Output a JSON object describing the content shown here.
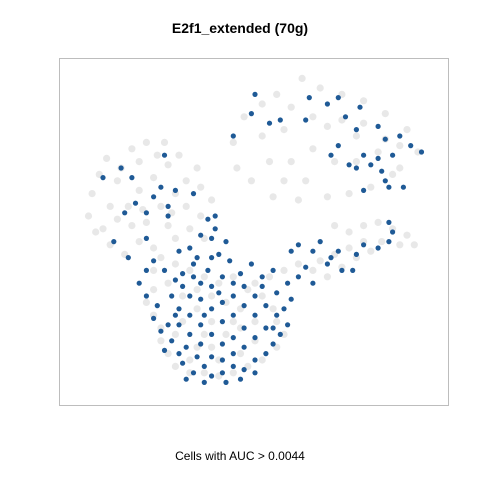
{
  "chart_data": {
    "type": "scatter",
    "title": "E2f1_extended (70g)",
    "subtitle": "Cells with AUC > 0.0044",
    "xlabel": "",
    "ylabel": "",
    "xlim": [
      0,
      1
    ],
    "ylim": [
      0,
      1
    ],
    "grid": false,
    "legend": "none",
    "colors": {
      "background_cells": "#d9d9d9",
      "highlighted_cells": "#1f5a96",
      "frame": "#bdbdbd"
    },
    "series": [
      {
        "values": [
          [
            0.56,
            0.93
          ],
          [
            0.63,
            0.98
          ],
          [
            0.68,
            0.95
          ],
          [
            0.74,
            0.93
          ],
          [
            0.8,
            0.91
          ],
          [
            0.86,
            0.87
          ],
          [
            0.92,
            0.82
          ],
          [
            0.95,
            0.75
          ],
          [
            0.88,
            0.68
          ],
          [
            0.82,
            0.64
          ],
          [
            0.76,
            0.62
          ],
          [
            0.7,
            0.61
          ],
          [
            0.62,
            0.6
          ],
          [
            0.55,
            0.61
          ],
          [
            0.49,
            0.66
          ],
          [
            0.45,
            0.7
          ],
          [
            0.44,
            0.78
          ],
          [
            0.47,
            0.86
          ],
          [
            0.52,
            0.9
          ],
          [
            0.6,
            0.89
          ],
          [
            0.66,
            0.86
          ],
          [
            0.7,
            0.83
          ],
          [
            0.66,
            0.76
          ],
          [
            0.6,
            0.72
          ],
          [
            0.54,
            0.72
          ],
          [
            0.52,
            0.8
          ],
          [
            0.58,
            0.82
          ],
          [
            0.72,
            0.72
          ],
          [
            0.78,
            0.72
          ],
          [
            0.84,
            0.75
          ],
          [
            0.9,
            0.77
          ],
          [
            0.86,
            0.79
          ],
          [
            0.78,
            0.8
          ],
          [
            0.74,
            0.85
          ],
          [
            0.8,
            0.84
          ],
          [
            0.9,
            0.7
          ],
          [
            0.64,
            0.66
          ],
          [
            0.58,
            0.66
          ],
          [
            0.04,
            0.55
          ],
          [
            0.05,
            0.62
          ],
          [
            0.07,
            0.68
          ],
          [
            0.09,
            0.73
          ],
          [
            0.12,
            0.66
          ],
          [
            0.1,
            0.58
          ],
          [
            0.08,
            0.51
          ],
          [
            0.1,
            0.46
          ],
          [
            0.14,
            0.43
          ],
          [
            0.18,
            0.47
          ],
          [
            0.2,
            0.53
          ],
          [
            0.24,
            0.58
          ],
          [
            0.28,
            0.62
          ],
          [
            0.31,
            0.66
          ],
          [
            0.35,
            0.64
          ],
          [
            0.38,
            0.6
          ],
          [
            0.35,
            0.55
          ],
          [
            0.32,
            0.51
          ],
          [
            0.28,
            0.48
          ],
          [
            0.22,
            0.45
          ],
          [
            0.16,
            0.52
          ],
          [
            0.15,
            0.58
          ],
          [
            0.18,
            0.63
          ],
          [
            0.22,
            0.67
          ],
          [
            0.26,
            0.71
          ],
          [
            0.23,
            0.74
          ],
          [
            0.18,
            0.72
          ],
          [
            0.13,
            0.7
          ],
          [
            0.16,
            0.76
          ],
          [
            0.2,
            0.78
          ],
          [
            0.25,
            0.78
          ],
          [
            0.29,
            0.74
          ],
          [
            0.34,
            0.7
          ],
          [
            0.06,
            0.5
          ],
          [
            0.12,
            0.54
          ],
          [
            0.27,
            0.56
          ],
          [
            0.31,
            0.58
          ],
          [
            0.36,
            0.48
          ],
          [
            0.26,
            0.52
          ],
          [
            0.19,
            0.57
          ],
          [
            0.72,
            0.52
          ],
          [
            0.76,
            0.5
          ],
          [
            0.8,
            0.52
          ],
          [
            0.84,
            0.53
          ],
          [
            0.88,
            0.51
          ],
          [
            0.92,
            0.49
          ],
          [
            0.94,
            0.46
          ],
          [
            0.9,
            0.46
          ],
          [
            0.85,
            0.47
          ],
          [
            0.8,
            0.47
          ],
          [
            0.76,
            0.45
          ],
          [
            0.72,
            0.43
          ],
          [
            0.68,
            0.41
          ],
          [
            0.66,
            0.38
          ],
          [
            0.7,
            0.36
          ],
          [
            0.74,
            0.39
          ],
          [
            0.78,
            0.42
          ],
          [
            0.82,
            0.44
          ],
          [
            0.62,
            0.4
          ],
          [
            0.58,
            0.38
          ],
          [
            0.54,
            0.36
          ],
          [
            0.5,
            0.34
          ],
          [
            0.22,
            0.38
          ],
          [
            0.24,
            0.42
          ],
          [
            0.28,
            0.4
          ],
          [
            0.32,
            0.38
          ],
          [
            0.36,
            0.36
          ],
          [
            0.4,
            0.34
          ],
          [
            0.44,
            0.36
          ],
          [
            0.48,
            0.32
          ],
          [
            0.52,
            0.3
          ],
          [
            0.55,
            0.26
          ],
          [
            0.56,
            0.22
          ],
          [
            0.58,
            0.18
          ],
          [
            0.56,
            0.14
          ],
          [
            0.52,
            0.1
          ],
          [
            0.48,
            0.08
          ],
          [
            0.44,
            0.06
          ],
          [
            0.4,
            0.05
          ],
          [
            0.36,
            0.06
          ],
          [
            0.32,
            0.06
          ],
          [
            0.28,
            0.08
          ],
          [
            0.26,
            0.12
          ],
          [
            0.24,
            0.16
          ],
          [
            0.24,
            0.2
          ],
          [
            0.22,
            0.24
          ],
          [
            0.2,
            0.28
          ],
          [
            0.22,
            0.32
          ],
          [
            0.26,
            0.34
          ],
          [
            0.3,
            0.3
          ],
          [
            0.34,
            0.26
          ],
          [
            0.38,
            0.22
          ],
          [
            0.42,
            0.18
          ],
          [
            0.46,
            0.2
          ],
          [
            0.5,
            0.22
          ],
          [
            0.46,
            0.26
          ],
          [
            0.42,
            0.28
          ],
          [
            0.38,
            0.3
          ],
          [
            0.34,
            0.32
          ],
          [
            0.3,
            0.22
          ],
          [
            0.34,
            0.14
          ],
          [
            0.4,
            0.1
          ],
          [
            0.46,
            0.12
          ],
          [
            0.5,
            0.16
          ],
          [
            0.28,
            0.18
          ],
          [
            0.32,
            0.1
          ],
          [
            0.38,
            0.14
          ],
          [
            0.44,
            0.22
          ],
          [
            0.36,
            0.18
          ]
        ]
      },
      {
        "values": [
          [
            0.44,
            0.8
          ],
          [
            0.49,
            0.87
          ],
          [
            0.54,
            0.84
          ],
          [
            0.5,
            0.93
          ],
          [
            0.57,
            0.85
          ],
          [
            0.65,
            0.92
          ],
          [
            0.7,
            0.9
          ],
          [
            0.75,
            0.86
          ],
          [
            0.79,
            0.89
          ],
          [
            0.84,
            0.83
          ],
          [
            0.86,
            0.79
          ],
          [
            0.9,
            0.8
          ],
          [
            0.93,
            0.77
          ],
          [
            0.96,
            0.75
          ],
          [
            0.88,
            0.74
          ],
          [
            0.84,
            0.73
          ],
          [
            0.78,
            0.7
          ],
          [
            0.76,
            0.71
          ],
          [
            0.73,
            0.77
          ],
          [
            0.78,
            0.82
          ],
          [
            0.64,
            0.85
          ],
          [
            0.73,
            0.92
          ],
          [
            0.8,
            0.74
          ],
          [
            0.82,
            0.71
          ],
          [
            0.85,
            0.69
          ],
          [
            0.87,
            0.64
          ],
          [
            0.8,
            0.63
          ],
          [
            0.91,
            0.64
          ],
          [
            0.86,
            0.66
          ],
          [
            0.71,
            0.74
          ],
          [
            0.08,
            0.67
          ],
          [
            0.13,
            0.7
          ],
          [
            0.16,
            0.67
          ],
          [
            0.25,
            0.74
          ],
          [
            0.24,
            0.64
          ],
          [
            0.22,
            0.61
          ],
          [
            0.2,
            0.56
          ],
          [
            0.14,
            0.56
          ],
          [
            0.11,
            0.47
          ],
          [
            0.15,
            0.42
          ],
          [
            0.2,
            0.38
          ],
          [
            0.25,
            0.38
          ],
          [
            0.3,
            0.37
          ],
          [
            0.38,
            0.48
          ],
          [
            0.39,
            0.51
          ],
          [
            0.35,
            0.49
          ],
          [
            0.37,
            0.54
          ],
          [
            0.33,
            0.62
          ],
          [
            0.28,
            0.63
          ],
          [
            0.26,
            0.55
          ],
          [
            0.32,
            0.45
          ],
          [
            0.39,
            0.55
          ],
          [
            0.42,
            0.47
          ],
          [
            0.4,
            0.43
          ],
          [
            0.34,
            0.42
          ],
          [
            0.29,
            0.44
          ],
          [
            0.22,
            0.41
          ],
          [
            0.2,
            0.48
          ],
          [
            0.17,
            0.59
          ],
          [
            0.26,
            0.58
          ],
          [
            0.6,
            0.44
          ],
          [
            0.62,
            0.46
          ],
          [
            0.66,
            0.44
          ],
          [
            0.68,
            0.47
          ],
          [
            0.71,
            0.42
          ],
          [
            0.74,
            0.38
          ],
          [
            0.77,
            0.38
          ],
          [
            0.73,
            0.44
          ],
          [
            0.8,
            0.46
          ],
          [
            0.84,
            0.45
          ],
          [
            0.87,
            0.47
          ],
          [
            0.88,
            0.5
          ],
          [
            0.87,
            0.53
          ],
          [
            0.78,
            0.43
          ],
          [
            0.7,
            0.4
          ],
          [
            0.64,
            0.39
          ],
          [
            0.59,
            0.34
          ],
          [
            0.56,
            0.31
          ],
          [
            0.6,
            0.29
          ],
          [
            0.62,
            0.36
          ],
          [
            0.66,
            0.34
          ],
          [
            0.55,
            0.38
          ],
          [
            0.52,
            0.36
          ],
          [
            0.58,
            0.26
          ],
          [
            0.18,
            0.34
          ],
          [
            0.2,
            0.3
          ],
          [
            0.23,
            0.27
          ],
          [
            0.22,
            0.23
          ],
          [
            0.24,
            0.19
          ],
          [
            0.27,
            0.16
          ],
          [
            0.25,
            0.13
          ],
          [
            0.29,
            0.12
          ],
          [
            0.3,
            0.09
          ],
          [
            0.33,
            0.06
          ],
          [
            0.36,
            0.08
          ],
          [
            0.38,
            0.05
          ],
          [
            0.41,
            0.06
          ],
          [
            0.44,
            0.08
          ],
          [
            0.47,
            0.07
          ],
          [
            0.5,
            0.1
          ],
          [
            0.53,
            0.12
          ],
          [
            0.55,
            0.15
          ],
          [
            0.57,
            0.18
          ],
          [
            0.59,
            0.21
          ],
          [
            0.56,
            0.24
          ],
          [
            0.53,
            0.27
          ],
          [
            0.5,
            0.3
          ],
          [
            0.47,
            0.33
          ],
          [
            0.44,
            0.34
          ],
          [
            0.41,
            0.36
          ],
          [
            0.37,
            0.38
          ],
          [
            0.33,
            0.36
          ],
          [
            0.3,
            0.33
          ],
          [
            0.27,
            0.3
          ],
          [
            0.29,
            0.26
          ],
          [
            0.32,
            0.24
          ],
          [
            0.35,
            0.21
          ],
          [
            0.38,
            0.18
          ],
          [
            0.41,
            0.15
          ],
          [
            0.44,
            0.12
          ],
          [
            0.47,
            0.14
          ],
          [
            0.5,
            0.17
          ],
          [
            0.53,
            0.2
          ],
          [
            0.5,
            0.24
          ],
          [
            0.47,
            0.27
          ],
          [
            0.44,
            0.3
          ],
          [
            0.41,
            0.28
          ],
          [
            0.38,
            0.26
          ],
          [
            0.35,
            0.29
          ],
          [
            0.32,
            0.3
          ],
          [
            0.29,
            0.21
          ],
          [
            0.32,
            0.18
          ],
          [
            0.35,
            0.15
          ],
          [
            0.38,
            0.11
          ],
          [
            0.41,
            0.1
          ],
          [
            0.44,
            0.17
          ],
          [
            0.47,
            0.2
          ],
          [
            0.44,
            0.24
          ],
          [
            0.41,
            0.22
          ],
          [
            0.38,
            0.33
          ],
          [
            0.35,
            0.34
          ],
          [
            0.31,
            0.14
          ],
          [
            0.34,
            0.11
          ],
          [
            0.28,
            0.24
          ],
          [
            0.36,
            0.24
          ],
          [
            0.4,
            0.31
          ],
          [
            0.46,
            0.37
          ],
          [
            0.49,
            0.4
          ],
          [
            0.43,
            0.41
          ],
          [
            0.38,
            0.42
          ],
          [
            0.33,
            0.4
          ],
          [
            0.28,
            0.35
          ],
          [
            0.52,
            0.33
          ],
          [
            0.55,
            0.2
          ],
          [
            0.26,
            0.21
          ],
          [
            0.42,
            0.03
          ],
          [
            0.36,
            0.03
          ],
          [
            0.31,
            0.04
          ],
          [
            0.46,
            0.04
          ],
          [
            0.5,
            0.06
          ]
        ]
      }
    ]
  }
}
